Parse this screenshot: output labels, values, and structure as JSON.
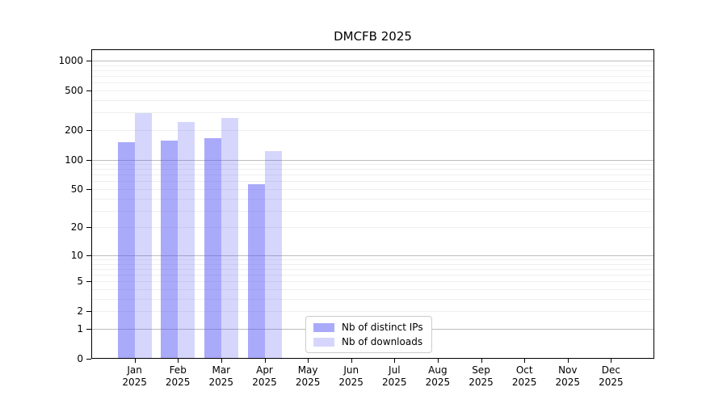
{
  "chart_data": {
    "type": "bar",
    "title": "DMCFB 2025",
    "categories": [
      "Jan 2025",
      "Feb 2025",
      "Mar 2025",
      "Apr 2025",
      "May 2025",
      "Jun 2025",
      "Jul 2025",
      "Aug 2025",
      "Sep 2025",
      "Oct 2025",
      "Nov 2025",
      "Dec 2025"
    ],
    "series": [
      {
        "name": "Nb of distinct IPs",
        "color": "rgba(85,85,245,0.50)",
        "values": [
          150,
          156,
          164,
          56,
          null,
          null,
          null,
          null,
          null,
          null,
          null,
          null
        ]
      },
      {
        "name": "Nb of downloads",
        "color": "rgba(85,85,245,0.24)",
        "values": [
          295,
          240,
          265,
          122,
          null,
          null,
          null,
          null,
          null,
          null,
          null,
          null
        ]
      }
    ],
    "scale": "log1p",
    "ylim": [
      0,
      1300
    ],
    "y_ticks": [
      0,
      1,
      2,
      5,
      10,
      20,
      50,
      100,
      200,
      500,
      1000
    ],
    "y_major_gridlines": [
      1,
      10,
      100,
      1000
    ],
    "y_minor_gridlines": [
      2,
      3,
      4,
      5,
      6,
      7,
      8,
      9,
      20,
      30,
      40,
      50,
      60,
      70,
      80,
      90,
      200,
      300,
      400,
      500,
      600,
      700,
      800,
      900
    ],
    "grid": "both",
    "legend_position": "inside lower center",
    "colors": {
      "major_grid": "#bdbdbd",
      "minor_grid": "#efefef",
      "spine": "#000000",
      "background": "#ffffff"
    }
  }
}
